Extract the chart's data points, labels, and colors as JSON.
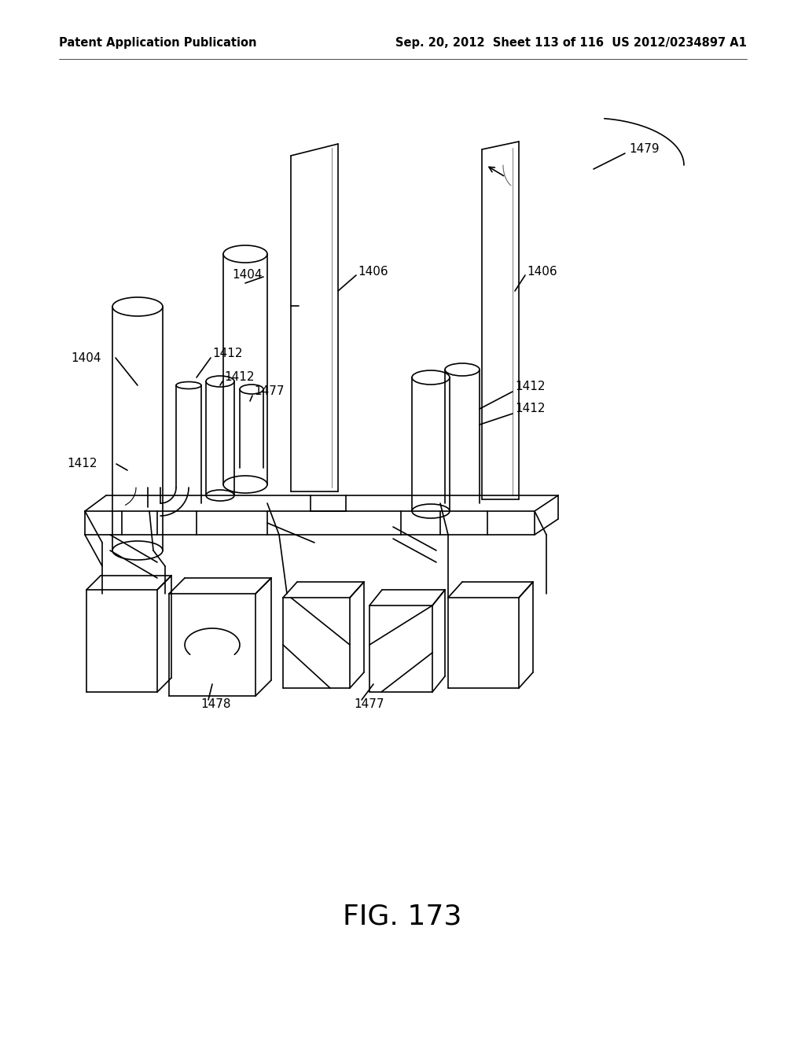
{
  "bg_color": "#ffffff",
  "header_left": "Patent Application Publication",
  "header_right": "Sep. 20, 2012  Sheet 113 of 116  US 2012/0234897 A1",
  "fig_label": "FIG. 173",
  "header_fontsize": 10.5,
  "fig_label_fontsize": 26,
  "label_fontsize": 11,
  "lw": 1.2
}
